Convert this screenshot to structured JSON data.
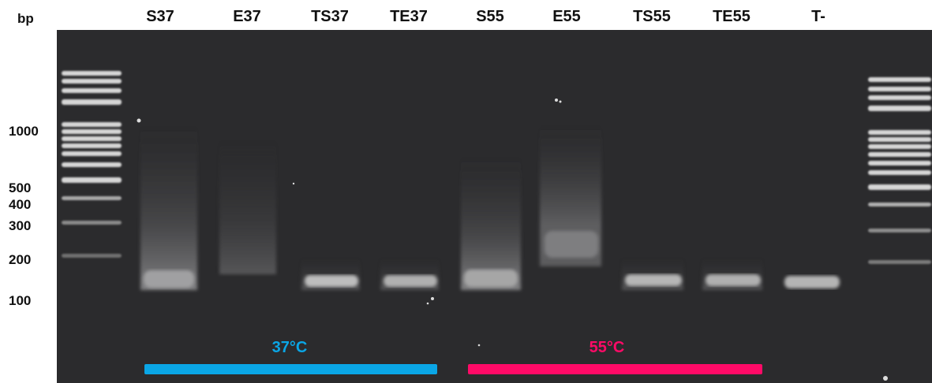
{
  "gel": {
    "bp_header": "bp",
    "lanes": [
      {
        "label": "S37",
        "band": "smear-low"
      },
      {
        "label": "E37",
        "band": "faint-smear"
      },
      {
        "label": "TS37",
        "band": "band"
      },
      {
        "label": "TE37",
        "band": "band"
      },
      {
        "label": "S55",
        "band": "smear-low"
      },
      {
        "label": "E55",
        "band": "smear-high"
      },
      {
        "label": "TS55",
        "band": "band"
      },
      {
        "label": "TE55",
        "band": "band"
      },
      {
        "label": "T-",
        "band": "band"
      }
    ],
    "ladder_labels": [
      "1000",
      "500",
      "400",
      "300",
      "200",
      "100"
    ],
    "temperature_groups": [
      {
        "label": "37°C",
        "color": "#0aa6e6"
      },
      {
        "label": "55°C",
        "color": "#ff0a67"
      }
    ],
    "colors": {
      "gel_background": "#2b2b2d",
      "band": "#c9c9c9"
    }
  }
}
